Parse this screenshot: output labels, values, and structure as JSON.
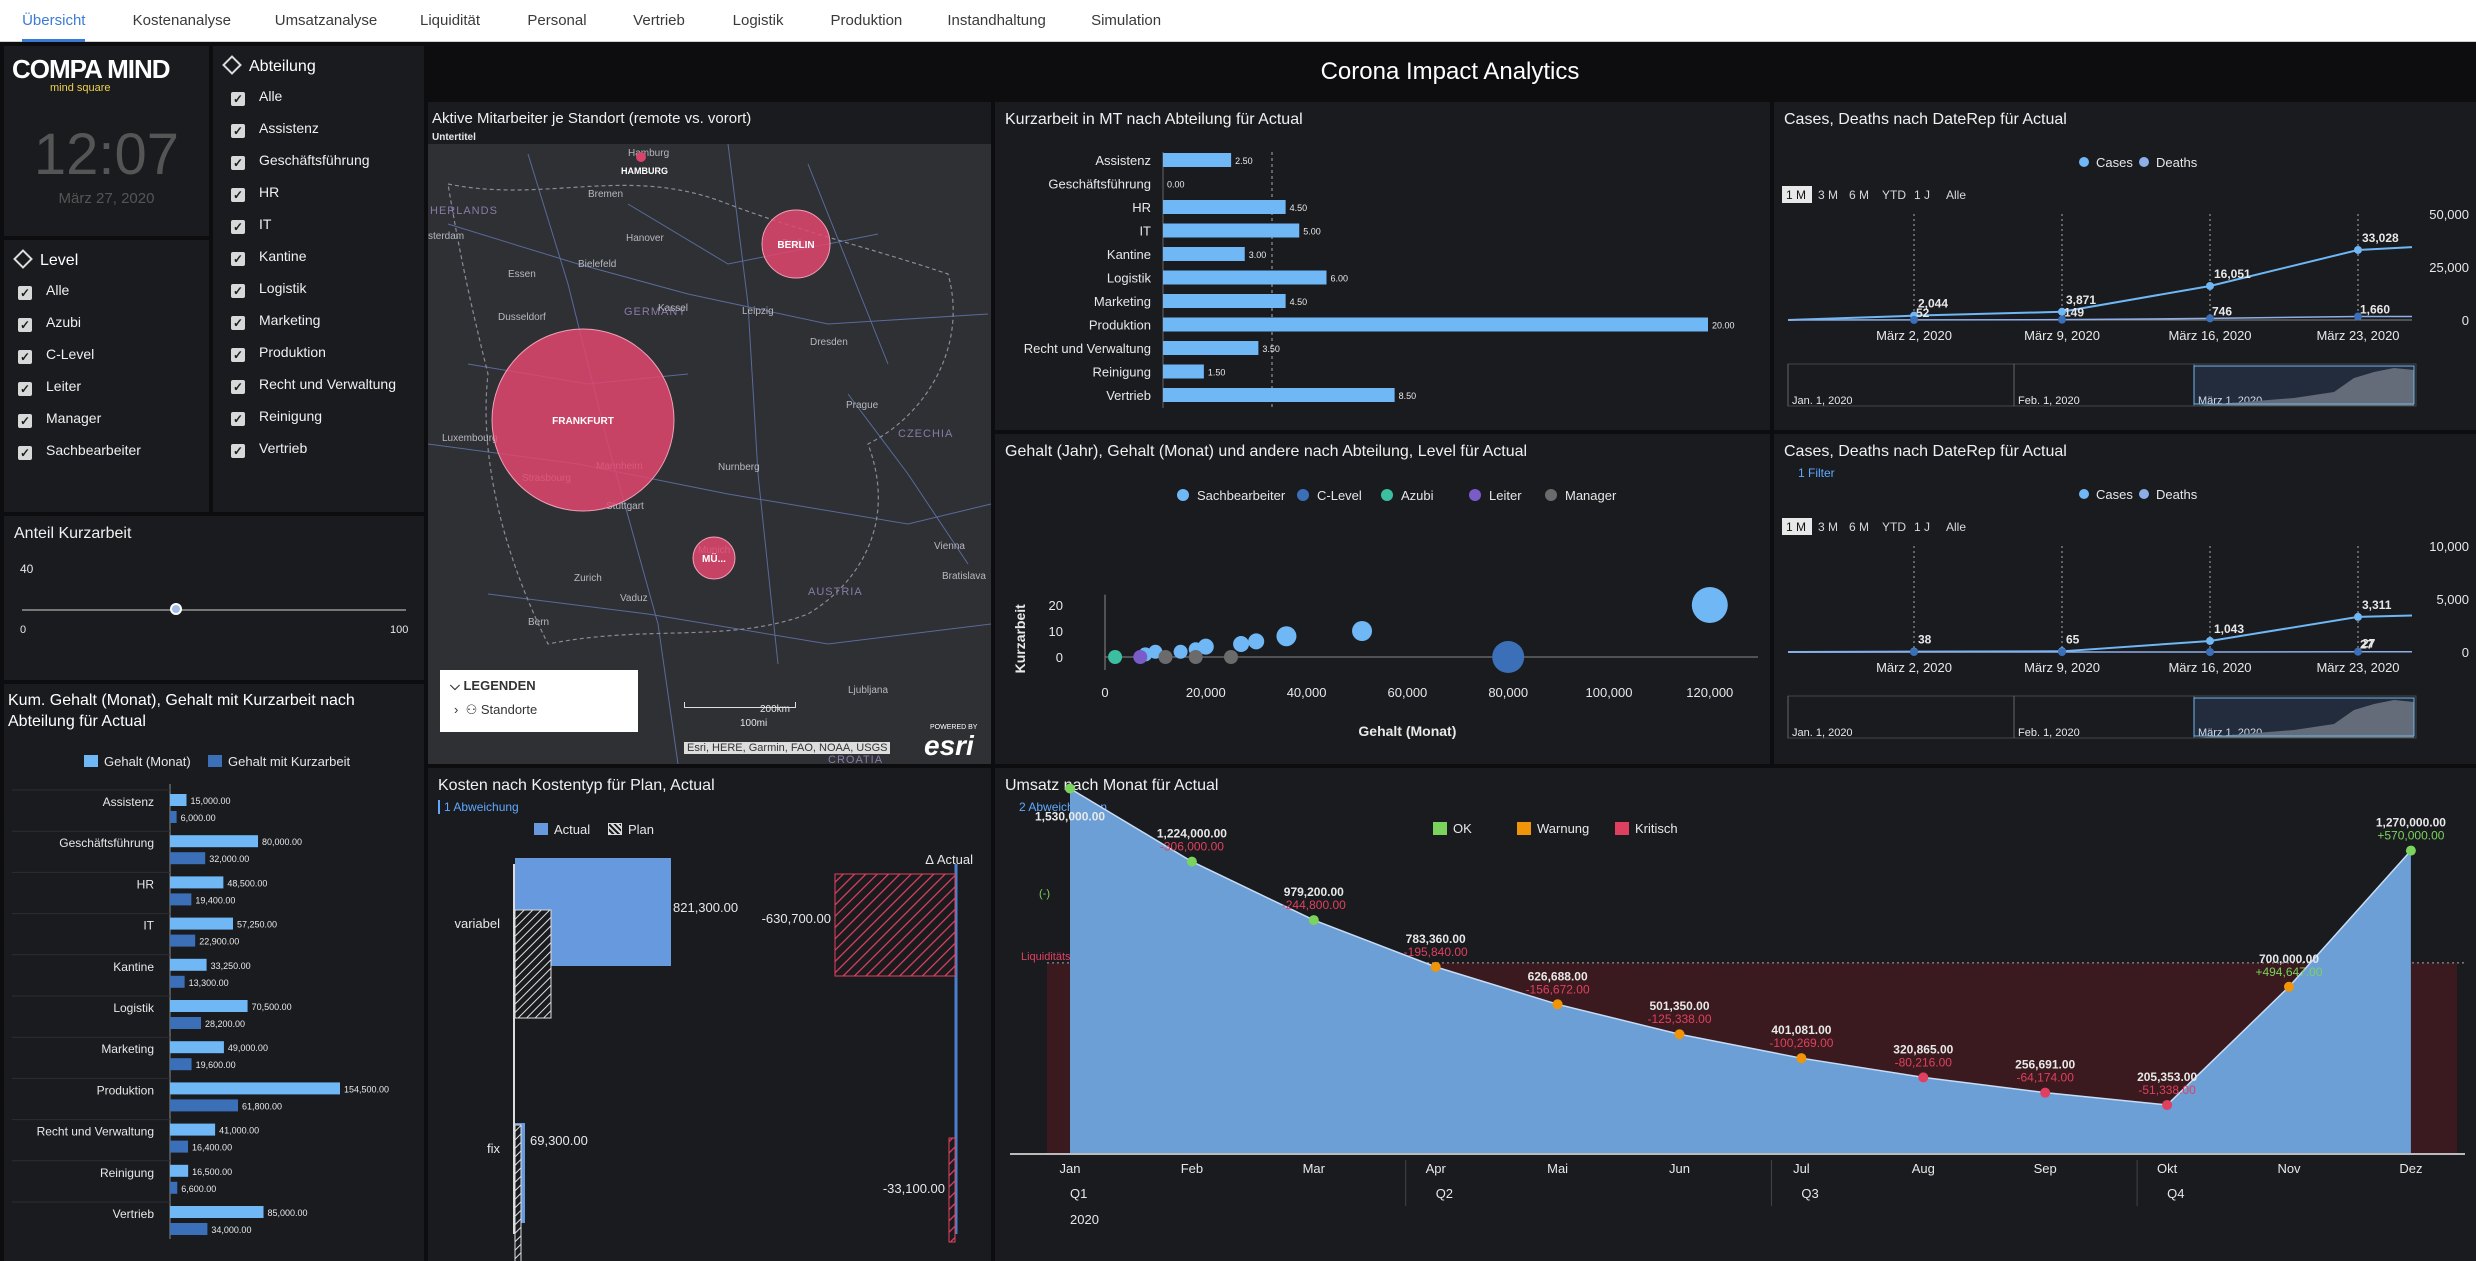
{
  "tabs": [
    "Übersicht",
    "Kostenanalyse",
    "Umsatzanalyse",
    "Liquidität",
    "Personal",
    "Vertrieb",
    "Logistik",
    "Produktion",
    "Instandhaltung",
    "Simulation"
  ],
  "dashboard_title": "Corona Impact Analytics",
  "logo": {
    "line1": "COMPA MIND",
    "line2": "mind square"
  },
  "clock": {
    "time": "12:07",
    "date": "März 27, 2020"
  },
  "level_filter": {
    "title": "Level",
    "items": [
      "Alle",
      "Azubi",
      "C-Level",
      "Leiter",
      "Manager",
      "Sachbearbeiter"
    ]
  },
  "dept_filter": {
    "title": "Abteilung",
    "items": [
      "Alle",
      "Assistenz",
      "Geschäftsführung",
      "HR",
      "IT",
      "Kantine",
      "Logistik",
      "Marketing",
      "Produktion",
      "Recht und Verwaltung",
      "Reinigung",
      "Vertrieb"
    ]
  },
  "slider": {
    "title": "Anteil Kurzarbeit",
    "value": "40",
    "min": "0",
    "max": "100",
    "fraction": 0.4
  },
  "map": {
    "title": "Aktive Mitarbeiter je Standort (remote vs. vorort)",
    "subtitle": "Untertitel",
    "cities": [
      "HAMBURG",
      "BERLIN",
      "FRANKFURT",
      "MÜ..."
    ],
    "labels": [
      "Hamburg",
      "Bremen",
      "HERLANDS",
      "sterdam",
      "Hanover",
      "Bielefeld",
      "Essen",
      "Dusseldorf",
      "GERMANY",
      "Leipzig",
      "Dresden",
      "Prague",
      "CZECHIA",
      "Luxembourg",
      "Stuttgart",
      "Munich",
      "Zurich",
      "Vaduz",
      "AUSTRIA",
      "Vienna",
      "Bern",
      "Ljubljana",
      "Bratislava",
      "CROATIA",
      "Berlin",
      "Kassel",
      "Nurnberg",
      "Mannheim",
      "Strasbourg"
    ],
    "legend_title": "LEGENDEN",
    "legend_item": "Standorte",
    "scale_km": "200km",
    "scale_mi": "100mi",
    "attribution": "Esri, HERE, Garmin, FAO, NOAA, USGS",
    "powered": "POWERED BY",
    "esri": "esri"
  },
  "kurzarbeit": {
    "title": "Kurzarbeit in MT nach Abteilung für Actual",
    "chart_data": {
      "type": "bar",
      "categories": [
        "Assistenz",
        "Geschäftsführung",
        "HR",
        "IT",
        "Kantine",
        "Logistik",
        "Marketing",
        "Produktion",
        "Recht und Verwaltung",
        "Reinigung",
        "Vertrieb"
      ],
      "values": [
        2.5,
        0,
        4.5,
        5,
        3,
        6,
        4.5,
        20,
        3.5,
        1.5,
        8.5
      ],
      "labels": [
        "2.50",
        "0.00",
        "4.50",
        "5.00",
        "3.00",
        "6.00",
        "4.50",
        "20.00",
        "3.50",
        "1.50",
        "8.50"
      ]
    }
  },
  "cases1": {
    "title": "Cases, Deaths nach DateRep für Actual",
    "legend": [
      "Cases",
      "Deaths"
    ],
    "ranges": [
      "1 M",
      "3 M",
      "6 M",
      "YTD",
      "1 J",
      "Alle"
    ],
    "yticks": [
      "50,000",
      "25,000",
      "0"
    ],
    "xticks": [
      "März 2, 2020",
      "März 9, 2020",
      "März 16, 2020",
      "März 23, 2020"
    ],
    "nav": [
      "Jan. 1, 2020",
      "Feb. 1, 2020",
      "März 1, 2020"
    ],
    "chart_data": {
      "type": "line",
      "series": [
        {
          "name": "Cases",
          "points": [
            2044,
            3871,
            16051,
            33028
          ]
        },
        {
          "name": "Deaths",
          "points": [
            52,
            149,
            746,
            1660
          ]
        }
      ],
      "labels": [
        "2,044",
        "3,871",
        "16,051",
        "33,028",
        "52",
        "149",
        "746",
        "1,660"
      ],
      "ylim": [
        0,
        50000
      ]
    }
  },
  "cases2": {
    "title": "Cases, Deaths nach DateRep für Actual",
    "filter": "1 Filter",
    "legend": [
      "Cases",
      "Deaths"
    ],
    "ranges": [
      "1 M",
      "3 M",
      "6 M",
      "YTD",
      "1 J",
      "Alle"
    ],
    "yticks": [
      "10,000",
      "5,000",
      "0"
    ],
    "xticks": [
      "März 2, 2020",
      "März 9, 2020",
      "März 16, 2020",
      "März 23, 2020"
    ],
    "nav": [
      "Jan. 1, 2020",
      "Feb. 1, 2020",
      "März 1, 2020"
    ],
    "chart_data": {
      "type": "line",
      "series": [
        {
          "name": "Cases",
          "points": [
            38,
            65,
            1043,
            3311
          ]
        },
        {
          "name": "Deaths",
          "points": [
            0,
            0,
            0,
            27
          ]
        }
      ],
      "labels": [
        "38",
        "65",
        "1,043",
        "3,311",
        "27"
      ],
      "ylim": [
        0,
        10000
      ]
    }
  },
  "scatter": {
    "title": "Gehalt (Jahr), Gehalt (Monat) und andere nach Abteilung, Level für Actual",
    "legend": [
      "Sachbearbeiter",
      "C-Level",
      "Azubi",
      "Leiter",
      "Manager"
    ],
    "ylabel": "Kurzarbeit",
    "xlabel": "Gehalt (Monat)",
    "xticks": [
      "0",
      "20,000",
      "40,000",
      "60,000",
      "80,000",
      "100,000",
      "120,000"
    ],
    "yticks": [
      "20",
      "10",
      "0"
    ],
    "chart_data": {
      "type": "scatter",
      "series": [
        {
          "name": "Sachbearbeiter",
          "points": [
            [
              8000,
              1
            ],
            [
              10000,
              2
            ],
            [
              15000,
              2
            ],
            [
              18000,
              3
            ],
            [
              20000,
              4
            ],
            [
              27000,
              5
            ],
            [
              30000,
              6
            ],
            [
              36000,
              8
            ],
            [
              51000,
              10
            ],
            [
              120000,
              20
            ]
          ]
        },
        {
          "name": "C-Level",
          "points": [
            [
              80000,
              0
            ]
          ]
        },
        {
          "name": "Azubi",
          "points": [
            [
              2000,
              0
            ]
          ]
        },
        {
          "name": "Leiter",
          "points": [
            [
              7000,
              0
            ]
          ]
        },
        {
          "name": "Manager",
          "points": [
            [
              12000,
              0
            ],
            [
              18000,
              0
            ],
            [
              25000,
              0
            ]
          ]
        }
      ]
    }
  },
  "gehalt": {
    "title": "Kum. Gehalt (Monat), Gehalt mit Kurzarbeit nach Abteilung für Actual",
    "legend": [
      "Gehalt (Monat)",
      "Gehalt mit Kurzarbeit"
    ],
    "chart_data": {
      "type": "bar",
      "categories": [
        "Assistenz",
        "Geschäftsführung",
        "HR",
        "IT",
        "Kantine",
        "Logistik",
        "Marketing",
        "Produktion",
        "Recht und Verwaltung",
        "Reinigung",
        "Vertrieb"
      ],
      "series": [
        {
          "name": "Gehalt (Monat)",
          "values": [
            15000,
            80000,
            48500,
            57250,
            33250,
            70500,
            49000,
            154500,
            41000,
            16500,
            85000
          ],
          "labels": [
            "15,000.00",
            "80,000.00",
            "48,500.00",
            "57,250.00",
            "33,250.00",
            "70,500.00",
            "49,000.00",
            "154,500.00",
            "41,000.00",
            "16,500.00",
            "85,000.00"
          ]
        },
        {
          "name": "Gehalt mit Kurzarbeit",
          "values": [
            6000,
            32000,
            19400,
            22900,
            13300,
            28200,
            19600,
            61800,
            16400,
            6600,
            34000
          ],
          "labels": [
            "6,000.00",
            "32,000.00",
            "19,400.00",
            "22,900.00",
            "13,300.00",
            "28,200.00",
            "19,600.00",
            "61,800.00",
            "16,400.00",
            "6,600.00",
            "34,000.00"
          ]
        }
      ]
    }
  },
  "kosten": {
    "title": "Kosten nach Kostentyp für Plan, Actual",
    "sub": "1 Abweichung",
    "legend": [
      "Actual",
      "Plan"
    ],
    "delta_title": "Δ Actual",
    "chart_data": {
      "type": "bar",
      "categories": [
        "variabel",
        "fix"
      ],
      "series": [
        {
          "name": "Actual",
          "values": [
            821300,
            69300
          ],
          "labels": [
            "821,300.00",
            "69,300.00"
          ]
        },
        {
          "name": "Plan",
          "values": [
            1452000,
            102400
          ]
        },
        {
          "name": "Δ Actual",
          "values": [
            -630700,
            -33100
          ],
          "labels": [
            "-630,700.00",
            "-33,100.00"
          ]
        }
      ]
    }
  },
  "umsatz": {
    "title": "Umsatz nach Monat für Actual",
    "sub": "2 Abweichungen",
    "legend": [
      "OK",
      "Warnung",
      "Kritisch"
    ],
    "threshold_label": "Liquiditätsgrenze",
    "first_note": "(-)",
    "quarters": [
      "Q1",
      "Q2",
      "Q3",
      "Q4"
    ],
    "year": "2020",
    "chart_data": {
      "type": "area",
      "categories": [
        "Jan",
        "Feb",
        "Mar",
        "Apr",
        "May",
        "Jun",
        "Jul",
        "Aug",
        "Sep",
        "Oct",
        "Nov",
        "Dec"
      ],
      "month_labels": [
        "Jan",
        "Feb",
        "Mar",
        "Apr",
        "Mai",
        "Jun",
        "Jul",
        "Aug",
        "Sep",
        "Okt",
        "Nov",
        "Dez"
      ],
      "values": [
        1530000,
        1224000,
        979200,
        783360,
        626688,
        501350,
        401081,
        320865,
        256691,
        205353,
        700000,
        1270000
      ],
      "labels": [
        "1,530,000.00",
        "1,224,000.00",
        "979,200.00",
        "783,360.00",
        "626,688.00",
        "501,350.00",
        "401,081.00",
        "320,865.00",
        "256,691.00",
        "205,353.00",
        "700,000.00",
        "1,270,000.00"
      ],
      "deltas": [
        "",
        "-306,000.00",
        "-244,800.00",
        "-195,840.00",
        "-156,672.00",
        "-125,338.00",
        "-100,269.00",
        "-80,216.00",
        "-64,174.00",
        "-51,338.00",
        "+494,647.00",
        "+570,000.00"
      ],
      "status": [
        "OK",
        "OK",
        "OK",
        "Warnung",
        "Warnung",
        "Warnung",
        "Warnung",
        "Kritisch",
        "Kritisch",
        "Kritisch",
        "Warnung",
        "OK"
      ],
      "threshold": 800000,
      "ylim": [
        0,
        1800000
      ]
    }
  }
}
